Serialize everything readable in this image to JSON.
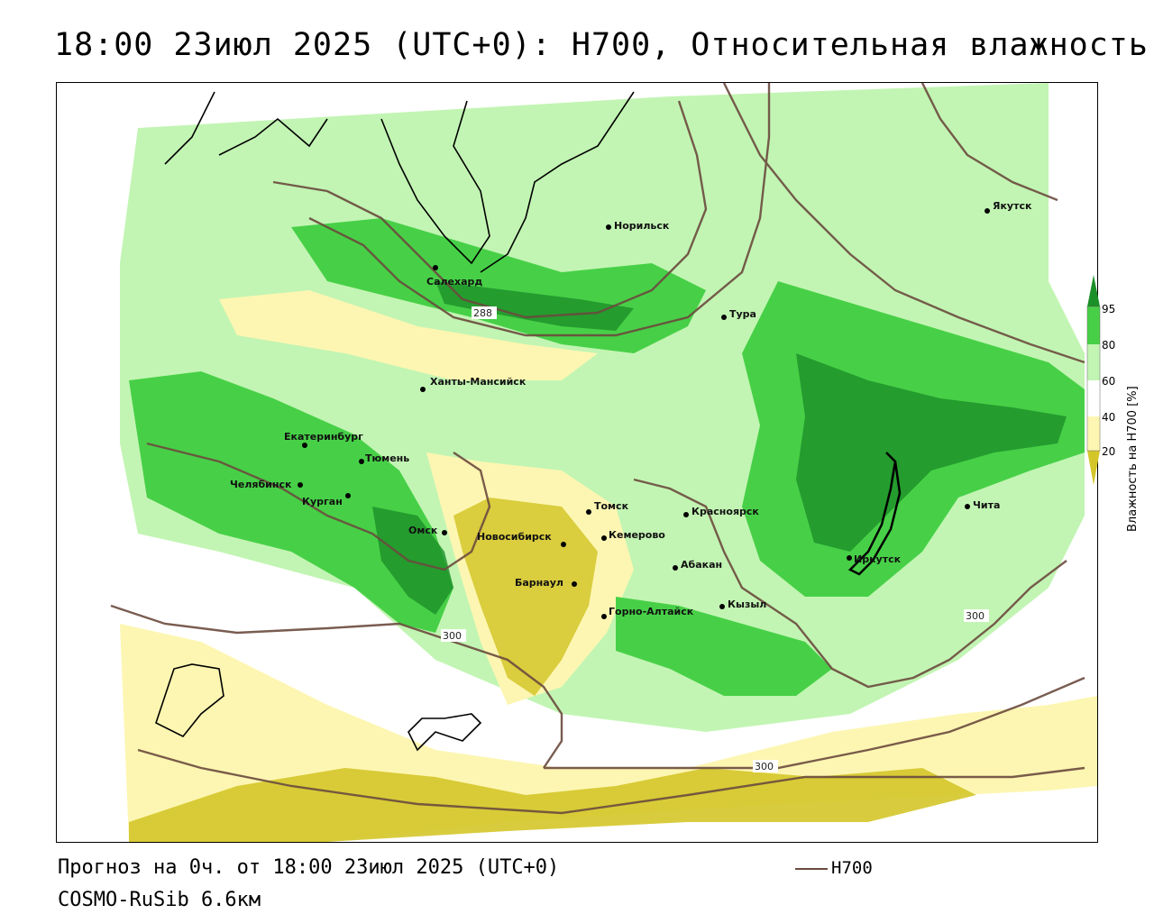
{
  "title": "18:00 23июл 2025 (UTC+0): H700, Относительная влажность",
  "footer": {
    "forecast": "Прогноз на 0ч. от 18:00 23июл 2025 (UTC+0)",
    "model": "COSMO-RuSib 6.6км"
  },
  "legend": {
    "line_label": "H700",
    "line_color": "#6b4b3e"
  },
  "colorbar": {
    "title": "Влажность на H700 [%]",
    "ticks": [
      "95",
      "80",
      "60",
      "40",
      "20"
    ],
    "colors": {
      "very_dry": "#d4c629",
      "dry": "#fdf6b2",
      "neutral": "#ffffff",
      "moist": "#c2f5b3",
      "wet": "#47d047",
      "very_wet": "#1b8f28"
    }
  },
  "contour_labels": [
    "288",
    "300",
    "300",
    "300"
  ],
  "cities": [
    {
      "name": "Норильск"
    },
    {
      "name": "Якутск"
    },
    {
      "name": "Салехард"
    },
    {
      "name": "Тура"
    },
    {
      "name": "Ханты-Мансийск"
    },
    {
      "name": "Екатеринбург"
    },
    {
      "name": "Тюмень"
    },
    {
      "name": "Челябинск"
    },
    {
      "name": "Курган"
    },
    {
      "name": "Омск"
    },
    {
      "name": "Новосибирск"
    },
    {
      "name": "Томск"
    },
    {
      "name": "Кемерово"
    },
    {
      "name": "Красноярск"
    },
    {
      "name": "Абакан"
    },
    {
      "name": "Барнаул"
    },
    {
      "name": "Горно-Алтайск"
    },
    {
      "name": "Кызыл"
    },
    {
      "name": "Иркутск"
    },
    {
      "name": "Чита"
    }
  ]
}
